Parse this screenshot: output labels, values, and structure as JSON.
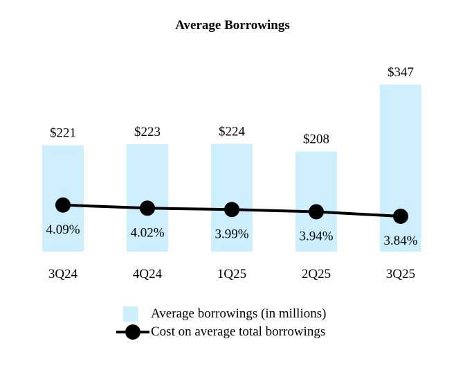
{
  "chart_data": {
    "type": "bar",
    "title": "Average Borrowings",
    "categories": [
      "3Q24",
      "4Q24",
      "1Q25",
      "2Q25",
      "3Q25"
    ],
    "series": [
      {
        "name": "Average borrowings (in millions)",
        "type": "bar",
        "values": [
          221,
          223,
          224,
          208,
          347
        ],
        "labels": [
          "$221",
          "$223",
          "$224",
          "$208",
          "$347"
        ]
      },
      {
        "name": "Cost on average total borrowings",
        "type": "line",
        "values": [
          4.09,
          4.02,
          3.99,
          3.94,
          3.84
        ],
        "labels": [
          "4.09%",
          "4.02%",
          "3.99%",
          "3.94%",
          "3.84%"
        ]
      }
    ],
    "xlabel": "",
    "ylabel": "",
    "ylim": [
      0,
      400
    ],
    "grid": false,
    "legend": "bottom-center"
  },
  "colors": {
    "bar": "#cdeefc",
    "line": "#000000",
    "text": "#000000"
  }
}
